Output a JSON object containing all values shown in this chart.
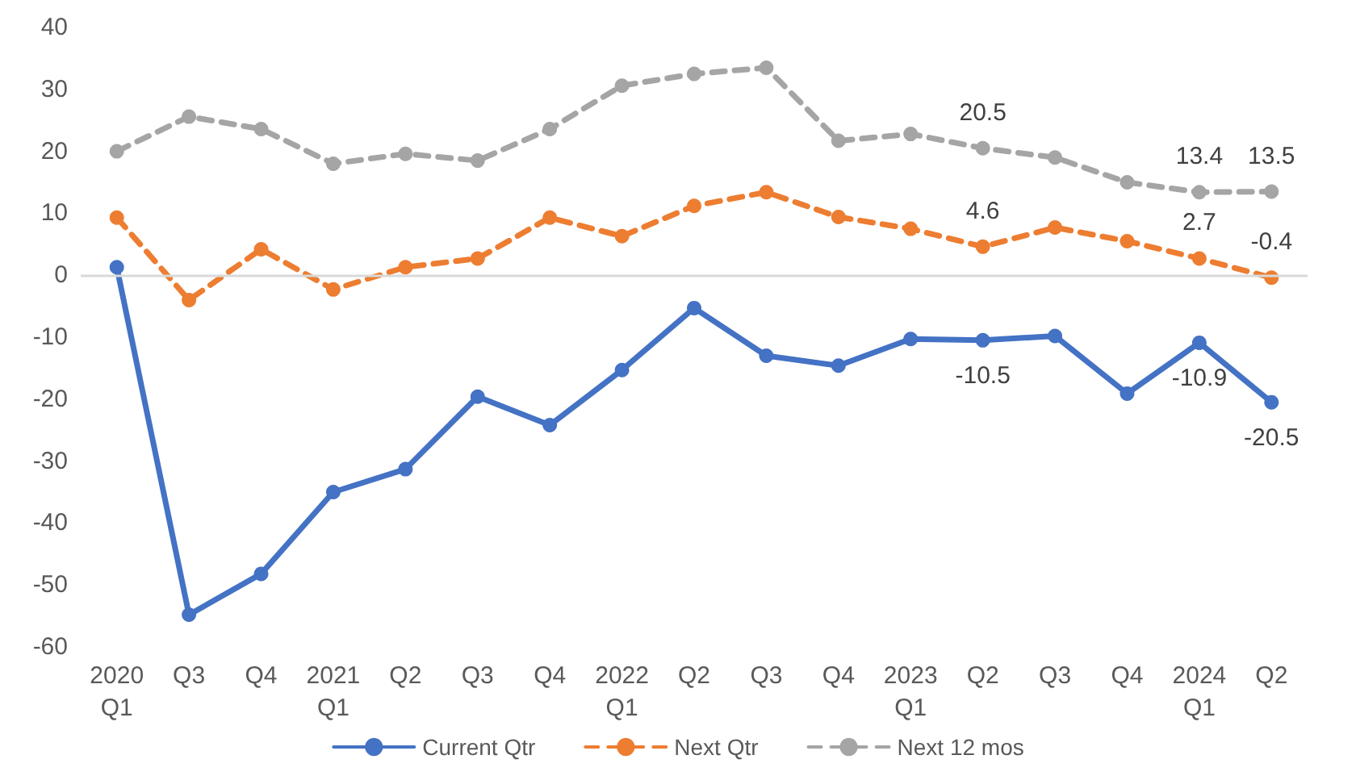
{
  "chart_data": {
    "type": "line",
    "categories": [
      "2020\nQ1",
      "Q3",
      "Q4",
      "2021\nQ1",
      "Q2",
      "Q3",
      "Q4",
      "2022\nQ1",
      "Q2",
      "Q3",
      "Q4",
      "2023\nQ1",
      "Q2",
      "Q3",
      "Q4",
      "2024\nQ1",
      "Q2"
    ],
    "series": [
      {
        "name": "Current Qtr",
        "color": "#4472c4",
        "line_style": "solid",
        "values": [
          1.3,
          -54.8,
          -48.2,
          -35,
          -31.3,
          -19.6,
          -24.2,
          -15.3,
          -5.3,
          -13,
          -14.6,
          -10.3,
          -10.5,
          -9.8,
          -19.1,
          -10.9,
          -20.5
        ],
        "value_labels": [
          null,
          null,
          null,
          null,
          null,
          null,
          null,
          null,
          null,
          null,
          null,
          null,
          "-10.5",
          null,
          null,
          "-10.9",
          "-20.5"
        ]
      },
      {
        "name": "Next Qtr",
        "color": "#ed7d31",
        "line_style": "dashed",
        "values": [
          9.3,
          -4,
          4.2,
          -2.3,
          1.3,
          2.7,
          9.3,
          6.3,
          11.2,
          13.4,
          9.4,
          7.5,
          4.6,
          7.7,
          5.5,
          2.7,
          -0.4
        ],
        "value_labels": [
          null,
          null,
          null,
          null,
          null,
          null,
          null,
          null,
          null,
          null,
          null,
          null,
          "4.6",
          null,
          null,
          "2.7",
          "-0.4"
        ]
      },
      {
        "name": "Next 12 mos",
        "color": "#a5a5a5",
        "line_style": "dashed",
        "values": [
          20,
          25.6,
          23.6,
          18,
          19.6,
          18.5,
          23.6,
          30.6,
          32.5,
          33.5,
          21.7,
          22.8,
          20.5,
          19,
          15,
          13.4,
          13.5
        ],
        "value_labels": [
          null,
          null,
          null,
          null,
          null,
          null,
          null,
          null,
          null,
          null,
          null,
          null,
          "20.5",
          null,
          null,
          "13.4",
          "13.5"
        ]
      }
    ],
    "ref_lines": [
      {
        "axis": "y",
        "value": 0,
        "color": "#d9d9d9",
        "line_style": "solid"
      }
    ],
    "ylim": [
      -60,
      40
    ],
    "yticks": [
      -60,
      -50,
      -40,
      -30,
      -20,
      -10,
      0,
      10,
      20,
      30,
      40
    ],
    "grid": false,
    "legend": "bottom",
    "marker": "circle"
  }
}
